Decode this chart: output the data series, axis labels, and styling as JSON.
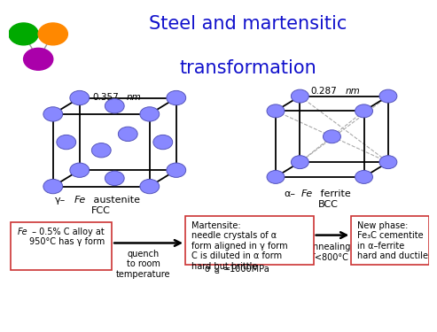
{
  "title_line1": "Steel and martensitic",
  "title_line2": "transformation",
  "title_color": "#1111CC",
  "title_fontsize": 15,
  "bg_color": "#FFFFFF",
  "fcc_label_nm": "0.357",
  "fcc_label_nm_italic": "nm",
  "bcc_label_nm": "0.287",
  "bcc_label_nm_italic": "nm",
  "fcc_label_greek": "γ–",
  "fcc_label_italic": "Fe",
  "fcc_label_rest": " austenite\nFCC",
  "bcc_label_greek": "α–",
  "bcc_label_italic": "Fe",
  "bcc_label_rest": " ferrite\nBCC",
  "atom_color": "#8888FF",
  "atom_edge": "#5555BB",
  "box1_text_italic": "Fe",
  "box1_text_rest": " – 0.5% C alloy at\n950°C has γ form",
  "box2_text": "Martensite:\nneedle crystals of α\nform aligned in γ form\nC is diluted in α form\nhard but brittle",
  "box2_sub": "σ",
  "box2_sub2": "el",
  "box2_sub3": "=1000MPa",
  "box3_text": "New phase:\nFe₃C cementite\nin α–ferrite\nhard and ductile",
  "arrow1_label": "quench\nto room\ntemperature",
  "arrow2_label": "annealing\nT<800°C",
  "box_edge_color": "#CC3333",
  "molecule_green": "#00AA00",
  "molecule_orange": "#FF8800",
  "molecule_purple": "#AA00AA"
}
